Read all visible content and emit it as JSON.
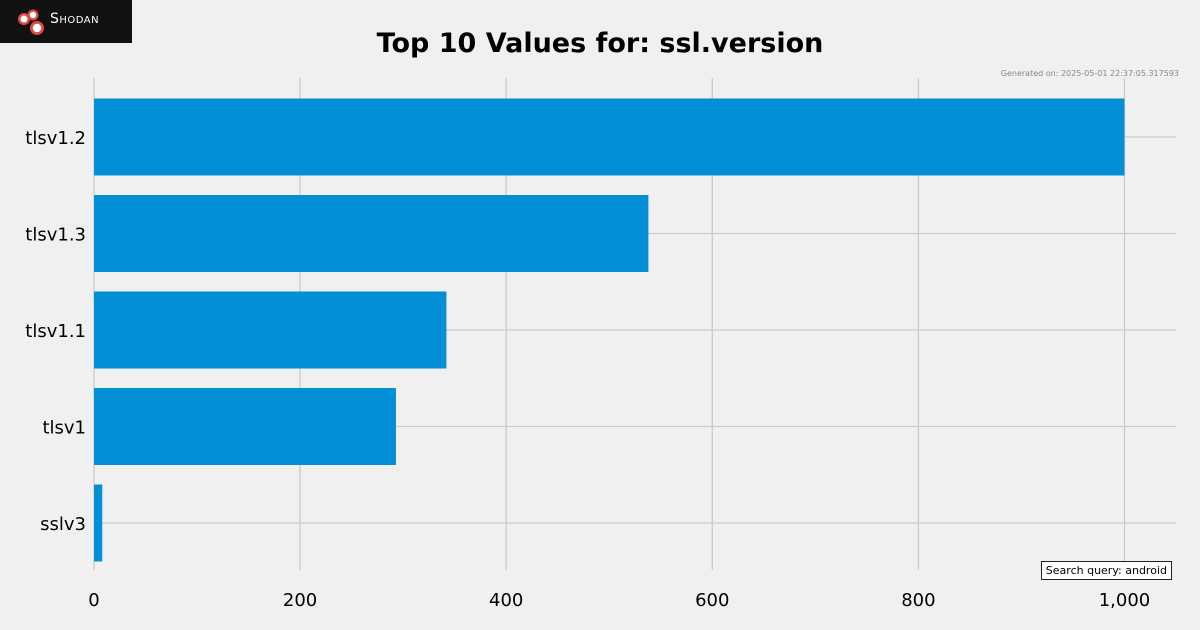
{
  "logo": {
    "text": "Shodan"
  },
  "generated": "Generated on: 2025-05-01 22:37:05.317593",
  "search_query": "Search query: android",
  "colors": {
    "bar": "#038fd6",
    "grid": "#cbcbcb",
    "background": "#f0f0f0"
  },
  "chart_data": {
    "type": "bar",
    "orientation": "horizontal",
    "title": "Top 10 Values for: ssl.version",
    "categories": [
      "tlsv1.2",
      "tlsv1.3",
      "tlsv1.1",
      "tlsv1",
      "sslv3"
    ],
    "values": [
      1000,
      538,
      342,
      293,
      8
    ],
    "xlim": [
      0,
      1050
    ],
    "xticks": [
      0,
      200,
      400,
      600,
      800,
      1000
    ],
    "xtick_labels": [
      "0",
      "200",
      "400",
      "600",
      "800",
      "1,000"
    ],
    "grid": true,
    "xlabel": "",
    "ylabel": ""
  }
}
